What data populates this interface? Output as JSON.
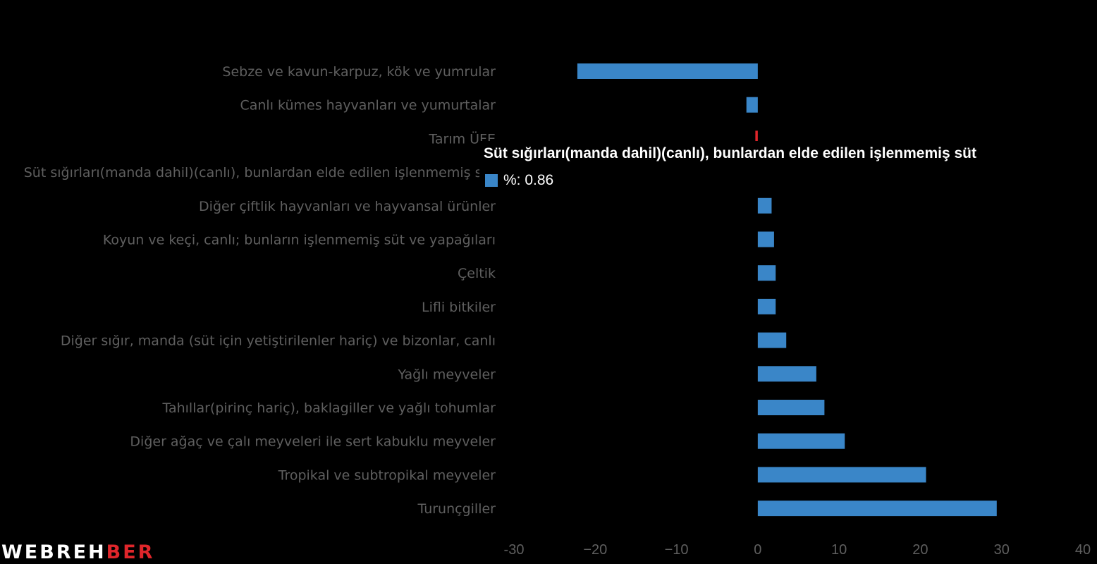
{
  "chart_data": {
    "type": "bar",
    "orientation": "horizontal",
    "categories": [
      "Sebze ve kavun-karpuz, kök ve yumrular",
      "Canlı kümes hayvanları ve yumurtalar",
      "Tarım ÜFE",
      "Süt sığırları(manda dahil)(canlı), bunlardan elde edilen işlenmemiş süt",
      "Diğer çiftlik hayvanları ve hayvansal ürünler",
      "Koyun ve keçi, canlı; bunların işlenmemiş süt ve yapağıları",
      "Çeltik",
      "Lifli bitkiler",
      "Diğer sığır, manda (süt için yetiştirilenler hariç) ve bizonlar, canlı",
      "Yağlı meyveler",
      "Tahıllar(pirinç hariç), baklagiller ve yağlı tohumlar",
      "Diğer ağaç ve çalı meyveleri ile sert kabuklu meyveler",
      "Tropikal ve subtropikal meyveler",
      "Turunçgiller"
    ],
    "series": [
      {
        "name": "%",
        "values": [
          -22.2,
          -1.4,
          -0.3,
          0.86,
          1.7,
          2.0,
          2.2,
          2.2,
          3.5,
          7.2,
          8.2,
          10.7,
          20.7,
          29.4
        ]
      }
    ],
    "xlim": [
      -30,
      40
    ],
    "xticks": [
      -30,
      -20,
      -10,
      0,
      10,
      20,
      30,
      40
    ],
    "xtick_labels": [
      "-30",
      "−20",
      "−10",
      "0",
      "10",
      "20",
      "30",
      "40"
    ],
    "bar_color": "#3a86c8",
    "highlight_color": "#e0262b",
    "highlight_category": "Tarım ÜFE",
    "hovered_category": "Süt sığırları(manda dahil)(canlı), bunlardan elde edilen işlenmemiş süt"
  },
  "tooltip": {
    "title": "Süt sığırları(manda dahil)(canlı), bunlardan elde edilen işlenmemiş süt",
    "value_text": "%: 0.86",
    "swatch_color": "#3a86c8"
  },
  "logo": {
    "text_part1": "WEBREH",
    "text_part2": "BER"
  }
}
